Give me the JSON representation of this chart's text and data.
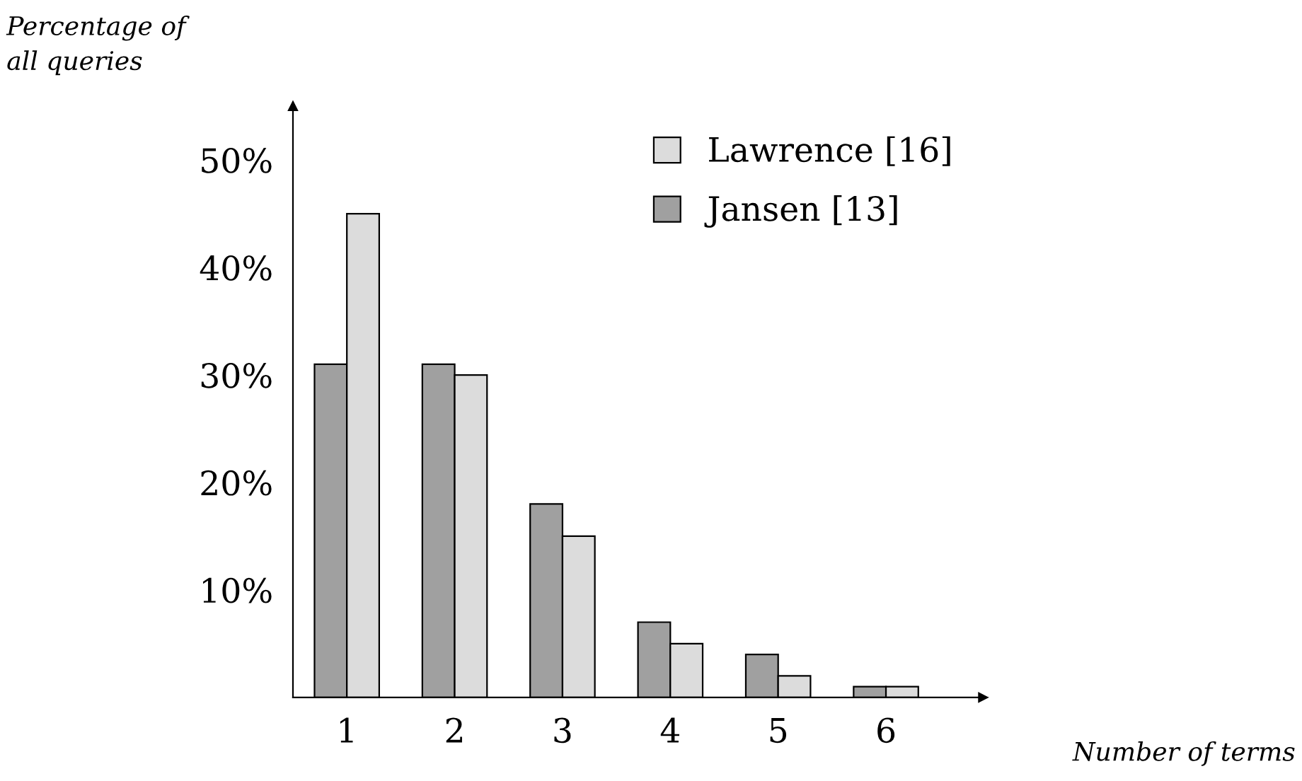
{
  "chart_data": {
    "type": "bar",
    "xlabel": "Number of terms",
    "ylabel": "Percentage of\nall queries",
    "categories": [
      "1",
      "2",
      "3",
      "4",
      "5",
      "6"
    ],
    "series": [
      {
        "name": "Jansen [13]",
        "color": "#a0a0a0",
        "values": [
          31,
          31,
          18,
          7,
          4,
          1
        ]
      },
      {
        "name": "Lawrence [16]",
        "color": "#dcdcdc",
        "values": [
          45,
          30,
          15,
          5,
          2,
          1
        ]
      }
    ],
    "ylim": [
      0,
      55
    ],
    "yticks": [
      {
        "value": 10,
        "label": "10%"
      },
      {
        "value": 20,
        "label": "20%"
      },
      {
        "value": 30,
        "label": "30%"
      },
      {
        "value": 40,
        "label": "40%"
      },
      {
        "value": 50,
        "label": "50%"
      }
    ],
    "grid": false,
    "legend": "top right"
  }
}
